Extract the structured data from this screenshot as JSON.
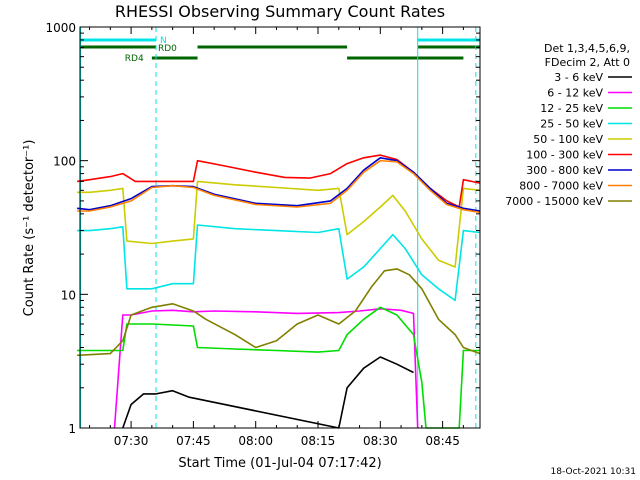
{
  "chart_data": {
    "type": "line",
    "title": "RHESSI Observing Summary Count Rates",
    "xlabel": "Start Time (01-Jul-04 07:17:42)",
    "ylabel": "Count Rate (s⁻¹ detector⁻¹)",
    "y_scale": "log",
    "ylim": [
      1,
      1000
    ],
    "xlim": [
      "07:17:42",
      "08:54:00"
    ],
    "x_ticks": [
      "07:30",
      "07:45",
      "08:00",
      "08:15",
      "08:30",
      "08:45"
    ],
    "y_ticks": [
      "1",
      "10",
      "100",
      "1000"
    ],
    "header": [
      "Det 1,3,4,5,6,9,",
      "FDecim 2, Att 0"
    ],
    "timestamp": "18-Oct-2021 10:31",
    "flags": [
      {
        "name": "N",
        "color": "#00e5e5",
        "start": "07:17",
        "end": "07:36"
      },
      {
        "name": "N",
        "color": "#00e5e5",
        "start": "08:39",
        "end": "08:54"
      },
      {
        "name": "RD0",
        "color": "#006400",
        "start": "07:17",
        "end": "07:36"
      },
      {
        "name": "RD0",
        "color": "#006400",
        "start": "07:46",
        "end": "08:22"
      },
      {
        "name": "RD0",
        "color": "#006400",
        "start": "08:39",
        "end": "08:54"
      },
      {
        "name": "RD4",
        "color": "#006400",
        "start": "07:35",
        "end": "07:46"
      },
      {
        "name": "RD4",
        "color": "#006400",
        "start": "08:22",
        "end": "08:50"
      }
    ],
    "series": [
      {
        "name": "3 - 6 keV",
        "color": "#000000",
        "x": [
          "07:28",
          "07:30",
          "07:33",
          "07:36",
          "07:40",
          "07:44",
          "08:20",
          "08:22",
          "08:26",
          "08:30",
          "08:34",
          "08:38"
        ],
        "y": [
          1.0,
          1.5,
          1.8,
          1.8,
          1.9,
          1.7,
          1.0,
          2.0,
          2.8,
          3.4,
          3.0,
          2.6
        ]
      },
      {
        "name": "6 - 12 keV",
        "color": "#ff00ff",
        "x": [
          "07:26",
          "07:28",
          "07:30",
          "07:35",
          "07:40",
          "07:45",
          "07:50",
          "08:00",
          "08:10",
          "08:20",
          "08:25",
          "08:30",
          "08:35",
          "08:38",
          "08:39"
        ],
        "y": [
          1.0,
          7.0,
          7.0,
          7.5,
          7.6,
          7.4,
          7.5,
          7.4,
          7.2,
          7.3,
          7.5,
          7.8,
          7.6,
          7.2,
          1.0
        ]
      },
      {
        "name": "12 - 25 keV",
        "color": "#00dd00",
        "x": [
          "07:17",
          "07:28",
          "07:29",
          "07:35",
          "07:45",
          "07:46",
          "07:55",
          "08:05",
          "08:15",
          "08:20",
          "08:22",
          "08:26",
          "08:30",
          "08:34",
          "08:38",
          "08:40",
          "08:41",
          "08:49",
          "08:50",
          "08:54"
        ],
        "y": [
          3.8,
          3.8,
          6.0,
          6.0,
          5.8,
          4.0,
          3.9,
          3.8,
          3.7,
          3.8,
          5.0,
          6.5,
          8.0,
          7.0,
          5.0,
          2.2,
          1.0,
          1.0,
          3.8,
          3.8
        ]
      },
      {
        "name": "25 - 50 keV",
        "color": "#00e5e5",
        "x": [
          "07:17",
          "07:20",
          "07:25",
          "07:28",
          "07:29",
          "07:35",
          "07:40",
          "07:45",
          "07:46",
          "07:55",
          "08:05",
          "08:15",
          "08:20",
          "08:22",
          "08:26",
          "08:30",
          "08:33",
          "08:36",
          "08:40",
          "08:44",
          "08:48",
          "08:50",
          "08:54"
        ],
        "y": [
          30,
          30,
          31,
          32,
          11,
          11,
          12,
          12,
          33,
          31,
          30,
          29,
          31,
          13,
          16,
          22,
          28,
          22,
          14,
          11,
          9,
          30,
          29
        ]
      },
      {
        "name": "50 - 100 keV",
        "color": "#cccc00",
        "x": [
          "07:17",
          "07:20",
          "07:25",
          "07:28",
          "07:29",
          "07:35",
          "07:40",
          "07:45",
          "07:46",
          "07:55",
          "08:05",
          "08:15",
          "08:20",
          "08:22",
          "08:26",
          "08:30",
          "08:33",
          "08:36",
          "08:40",
          "08:44",
          "08:48",
          "08:50",
          "08:54"
        ],
        "y": [
          58,
          58,
          60,
          62,
          25,
          24,
          25,
          26,
          70,
          66,
          63,
          60,
          62,
          28,
          35,
          45,
          55,
          42,
          26,
          18,
          16,
          62,
          60
        ]
      },
      {
        "name": "100 - 300 keV",
        "color": "#ff0000",
        "x": [
          "07:17",
          "07:20",
          "07:25",
          "07:28",
          "07:31",
          "07:38",
          "07:45",
          "07:46",
          "07:52",
          "08:00",
          "08:07",
          "08:13",
          "08:18",
          "08:22",
          "08:26",
          "08:30",
          "08:34",
          "08:38",
          "08:42",
          "08:46",
          "08:49",
          "08:50",
          "08:54"
        ],
        "y": [
          70,
          72,
          76,
          80,
          70,
          70,
          70,
          100,
          92,
          82,
          75,
          74,
          80,
          95,
          105,
          110,
          102,
          82,
          62,
          50,
          45,
          72,
          68
        ]
      },
      {
        "name": "300 - 800 keV",
        "color": "#0000cc",
        "x": [
          "07:17",
          "07:20",
          "07:25",
          "07:30",
          "07:35",
          "07:40",
          "07:45",
          "07:50",
          "08:00",
          "08:10",
          "08:18",
          "08:22",
          "08:26",
          "08:30",
          "08:34",
          "08:38",
          "08:42",
          "08:46",
          "08:50",
          "08:54"
        ],
        "y": [
          44,
          43,
          46,
          52,
          64,
          65,
          64,
          56,
          48,
          46,
          50,
          62,
          85,
          105,
          100,
          82,
          62,
          48,
          44,
          42
        ]
      },
      {
        "name": "800 - 7000 keV",
        "color": "#ff8000",
        "x": [
          "07:17",
          "07:20",
          "07:25",
          "07:30",
          "07:35",
          "07:40",
          "07:45",
          "07:50",
          "08:00",
          "08:10",
          "08:18",
          "08:22",
          "08:26",
          "08:30",
          "08:34",
          "08:38",
          "08:42",
          "08:46",
          "08:50",
          "08:54"
        ],
        "y": [
          42,
          42,
          45,
          50,
          63,
          65,
          63,
          55,
          47,
          45,
          48,
          60,
          82,
          100,
          98,
          80,
          60,
          47,
          43,
          41
        ]
      },
      {
        "name": "7000 - 15000 keV",
        "color": "#808000",
        "x": [
          "07:17",
          "07:25",
          "07:28",
          "07:30",
          "07:35",
          "07:40",
          "07:45",
          "07:48",
          "07:55",
          "08:00",
          "08:05",
          "08:10",
          "08:15",
          "08:20",
          "08:24",
          "08:28",
          "08:31",
          "08:34",
          "08:37",
          "08:40",
          "08:44",
          "08:48",
          "08:50",
          "08:54"
        ],
        "y": [
          3.5,
          3.6,
          4.5,
          7.0,
          8.0,
          8.5,
          7.5,
          6.5,
          5.0,
          4.0,
          4.5,
          6.0,
          7.0,
          6.0,
          7.5,
          11.5,
          15.0,
          15.5,
          14.0,
          11.0,
          6.5,
          5.0,
          4.0,
          3.6
        ]
      }
    ]
  }
}
